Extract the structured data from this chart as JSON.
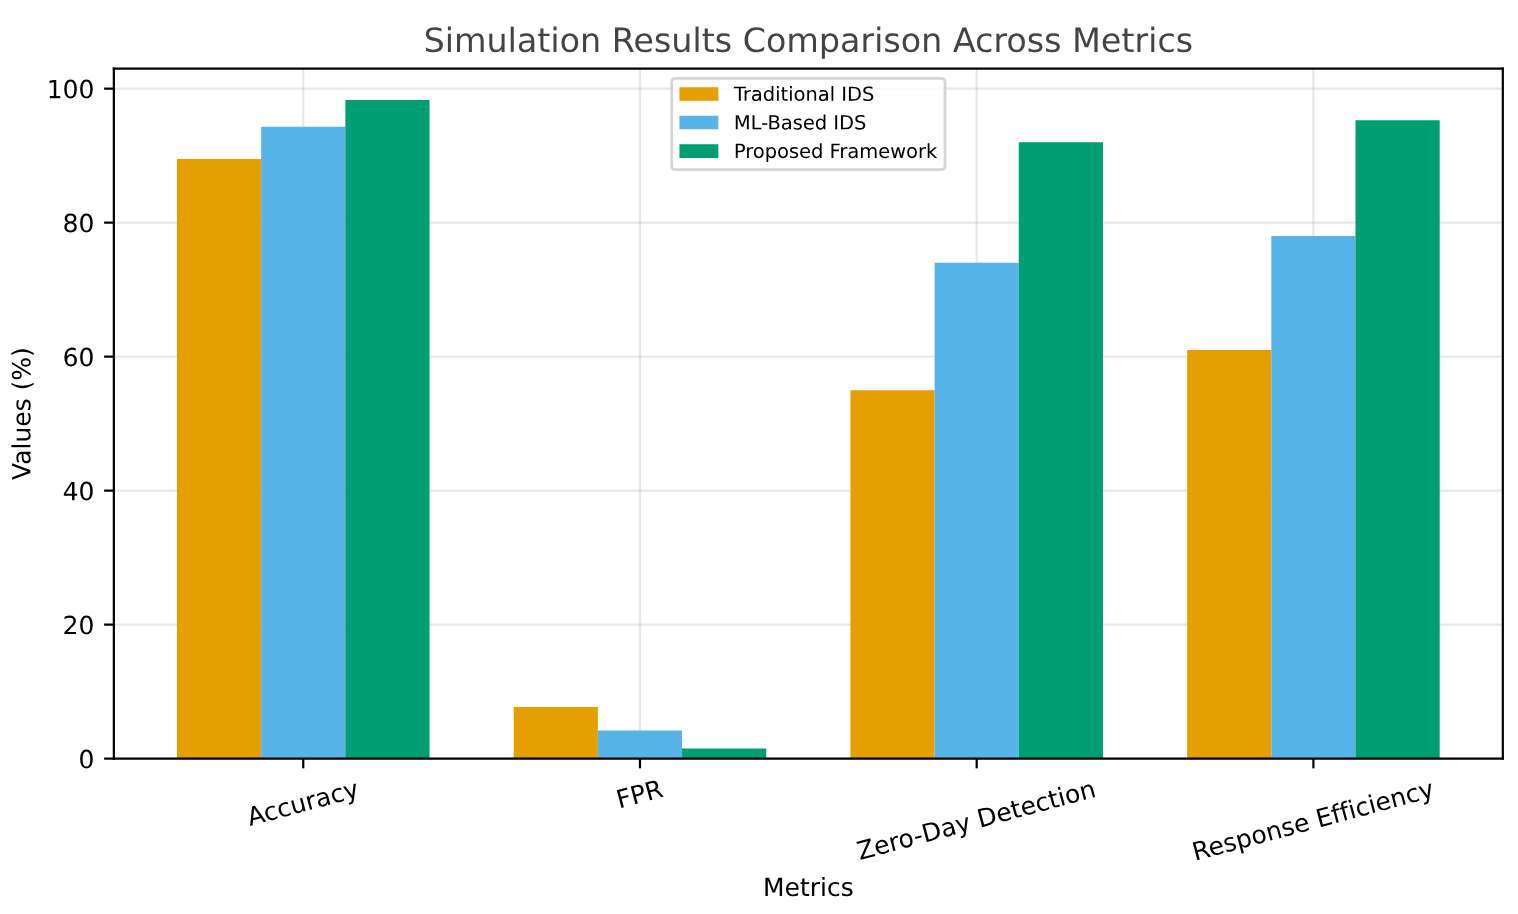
{
  "chart_data": {
    "type": "bar",
    "title": "Simulation Results Comparison Across Metrics",
    "xlabel": "Metrics",
    "ylabel": "Values (%)",
    "categories": [
      "Accuracy",
      "FPR",
      "Zero-Day Detection",
      "Response Efficiency"
    ],
    "series": [
      {
        "name": "Traditional IDS",
        "color": "#e69f00",
        "values": [
          89.5,
          7.7,
          55,
          61
        ]
      },
      {
        "name": "ML-Based IDS",
        "color": "#56b4e9",
        "values": [
          94.3,
          4.2,
          74,
          78
        ]
      },
      {
        "name": "Proposed Framework",
        "color": "#009e73",
        "values": [
          98.3,
          1.5,
          92,
          95.3
        ]
      }
    ],
    "ylim": [
      0,
      103
    ],
    "yticks": [
      0,
      20,
      40,
      60,
      80,
      100
    ],
    "grid": true,
    "legend": "top"
  }
}
